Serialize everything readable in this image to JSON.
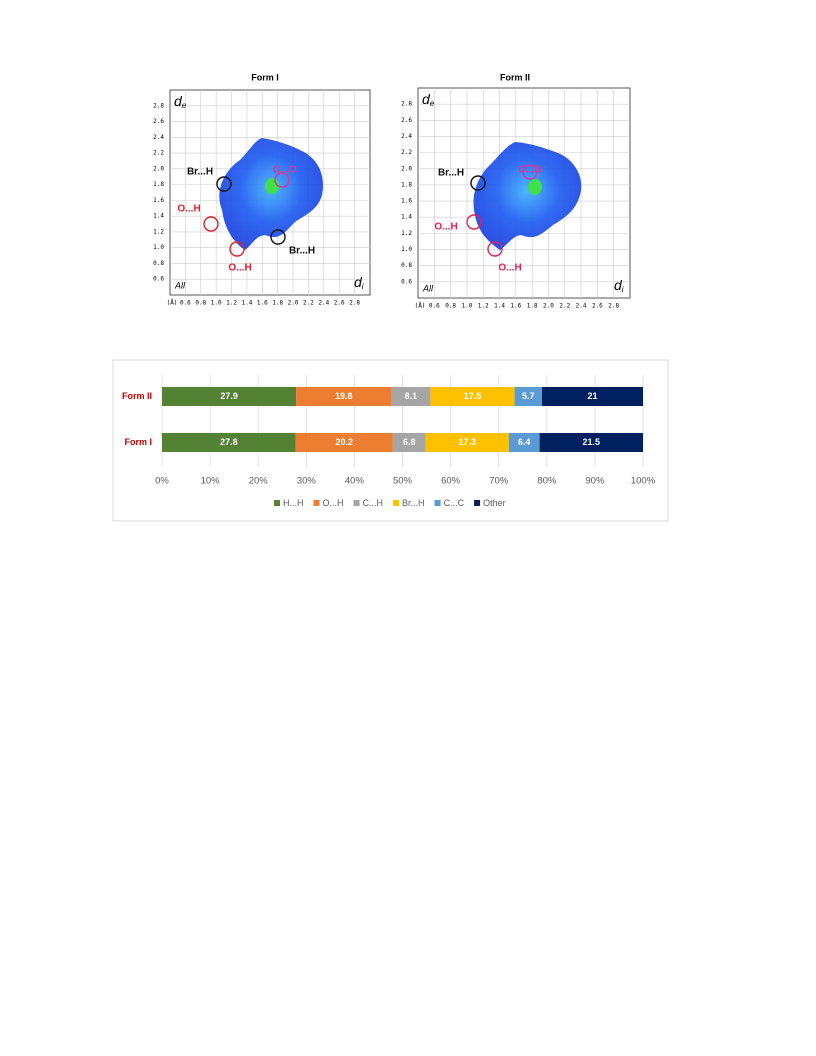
{
  "chart_data": [
    {
      "type": "fingerprint",
      "title": "Form I",
      "ylabel": "d",
      "ylabel_sub": "e",
      "xlabel": "d",
      "xlabel_sub": "i",
      "x_unit": "(Å)",
      "corner_label": "All",
      "xlim": [
        0.4,
        3.0
      ],
      "ylim": [
        0.4,
        3.0
      ],
      "xticks": [
        0.6,
        0.8,
        {
          "value": 1,
          "label": "1.0"
        },
        1.2,
        1.4,
        1.6,
        1.8,
        {
          "value": 2,
          "label": "2.0"
        },
        2.2,
        2.4,
        2.6,
        2.8
      ],
      "yticks": [
        0.6,
        0.8,
        {
          "value": 1,
          "label": "1.0"
        },
        1.2,
        1.4,
        1.6,
        1.8,
        {
          "value": 2,
          "label": "2.0"
        },
        2.2,
        2.4,
        2.6,
        2.8
      ],
      "annotations": [
        {
          "text": "Br...H",
          "color": "#111111"
        },
        {
          "text": "O...H",
          "color": "#e0202a"
        },
        {
          "text": "O...H",
          "color": "#e0202a"
        },
        {
          "text": "Br...H",
          "color": "#111111"
        },
        {
          "text": "O...O",
          "color": "#d43a9a"
        }
      ]
    },
    {
      "type": "fingerprint",
      "title": "Form II",
      "ylabel": "d",
      "ylabel_sub": "e",
      "xlabel": "d",
      "xlabel_sub": "i",
      "x_unit": "(Å)",
      "corner_label": "All",
      "xlim": [
        0.4,
        3.0
      ],
      "ylim": [
        0.4,
        3.0
      ],
      "xticks": [
        0.6,
        0.8,
        {
          "value": 1,
          "label": "1.0"
        },
        1.2,
        1.4,
        1.6,
        1.8,
        {
          "value": 2,
          "label": "2.0"
        },
        2.2,
        2.4,
        2.6,
        2.8
      ],
      "yticks": [
        0.6,
        0.8,
        {
          "value": 1,
          "label": "1.0"
        },
        1.2,
        1.4,
        1.6,
        1.8,
        {
          "value": 2,
          "label": "2.0"
        },
        2.2,
        2.4,
        2.6,
        2.8
      ],
      "annotations": [
        {
          "text": "Br...H",
          "color": "#111111"
        },
        {
          "text": "O...H",
          "color": "#e0205a"
        },
        {
          "text": "O...H",
          "color": "#e0205a"
        },
        {
          "text": "O...O",
          "color": "#d43a9a"
        }
      ]
    },
    {
      "type": "stacked_bar",
      "categories": [
        "Form II",
        "Form I"
      ],
      "series": [
        {
          "name": "H...H",
          "color": "#548235",
          "values": [
            27.9,
            27.8
          ]
        },
        {
          "name": "O...H",
          "color": "#ed7d31",
          "values": [
            19.8,
            20.2
          ]
        },
        {
          "name": "C...H",
          "color": "#a5a5a5",
          "values": [
            8.1,
            6.8
          ]
        },
        {
          "name": "Br...H",
          "color": "#ffc000",
          "values": [
            17.5,
            17.3
          ]
        },
        {
          "name": "C...C",
          "color": "#5b9bd5",
          "values": [
            5.7,
            6.4
          ]
        },
        {
          "name": "Other",
          "color": "#002060",
          "values": [
            21,
            21.5
          ]
        }
      ],
      "xlim": [
        0,
        100
      ],
      "xticks": [
        {
          "value": 0,
          "label": "0%"
        },
        {
          "value": 10,
          "label": "10%"
        },
        {
          "value": 20,
          "label": "20%"
        },
        {
          "value": 30,
          "label": "30%"
        },
        {
          "value": 40,
          "label": "40%"
        },
        {
          "value": 50,
          "label": "50%"
        },
        {
          "value": 60,
          "label": "60%"
        },
        {
          "value": 70,
          "label": "70%"
        },
        {
          "value": 80,
          "label": "80%"
        },
        {
          "value": 90,
          "label": "90%"
        },
        {
          "value": 100,
          "label": "100%"
        }
      ],
      "grid": true,
      "legend": "bottom"
    }
  ]
}
